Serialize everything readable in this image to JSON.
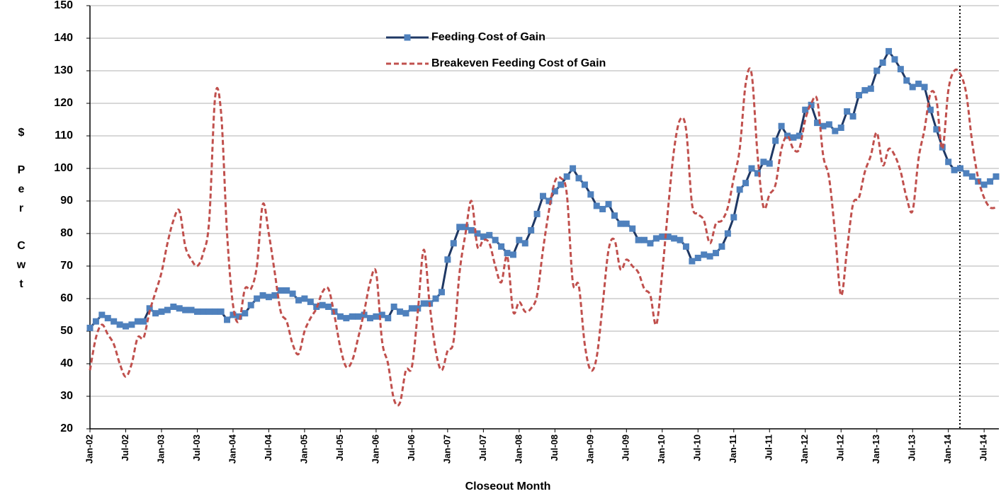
{
  "chart_data": {
    "type": "line",
    "x_label": "Closeout Month",
    "y_label": [
      "$",
      "Per",
      "Cwt"
    ],
    "categories": [
      "Jan-02",
      null,
      null,
      null,
      null,
      null,
      "Jul-02",
      null,
      null,
      null,
      null,
      null,
      "Jan-03",
      null,
      null,
      null,
      null,
      null,
      "Jul-03",
      null,
      null,
      null,
      null,
      null,
      "Jan-04",
      null,
      null,
      null,
      null,
      null,
      "Jul-04",
      null,
      null,
      null,
      null,
      null,
      "Jan-05",
      null,
      null,
      null,
      null,
      null,
      "Jul-05",
      null,
      null,
      null,
      null,
      null,
      "Jan-06",
      null,
      null,
      null,
      null,
      null,
      "Jul-06",
      null,
      null,
      null,
      null,
      null,
      "Jan-07",
      null,
      null,
      null,
      null,
      null,
      "Jul-07",
      null,
      null,
      null,
      null,
      null,
      "Jan-08",
      null,
      null,
      null,
      null,
      null,
      "Jul-08",
      null,
      null,
      null,
      null,
      null,
      "Jan-09",
      null,
      null,
      null,
      null,
      null,
      "Jul-09",
      null,
      null,
      null,
      null,
      null,
      "Jan-10",
      null,
      null,
      null,
      null,
      null,
      "Jul-10",
      null,
      null,
      null,
      null,
      null,
      "Jan-11",
      null,
      null,
      null,
      null,
      null,
      "Jul-11",
      null,
      null,
      null,
      null,
      null,
      "Jan-12",
      null,
      null,
      null,
      null,
      null,
      "Jul-12",
      null,
      null,
      null,
      null,
      null,
      "Jan-13",
      null,
      null,
      null,
      null,
      null,
      "Jul-13",
      null,
      null,
      null,
      null,
      null,
      "Jan-14",
      null,
      null,
      null,
      null,
      null,
      "Jul-14",
      null,
      null
    ],
    "series": [
      {
        "name": "Feeding Cost of Gain",
        "color": "#1f3864",
        "marker_color": "#4f81bd",
        "style": "solid",
        "marker": "square",
        "values": [
          51,
          53,
          55,
          54,
          53,
          52,
          51.5,
          52,
          53,
          53,
          57,
          55.5,
          56,
          56.5,
          57.5,
          57,
          56.5,
          56.5,
          56,
          56,
          56,
          56,
          56,
          53.5,
          55,
          54.5,
          55.5,
          58,
          60,
          61,
          60.5,
          61,
          62.5,
          62.5,
          61.5,
          59.5,
          60,
          59,
          57.5,
          58,
          57.5,
          56,
          54.5,
          54,
          54.5,
          54.5,
          55,
          54,
          54.5,
          55,
          54,
          57.5,
          56,
          55.5,
          57,
          57,
          58.5,
          58.5,
          60,
          62,
          72,
          77,
          82,
          82,
          81,
          80,
          79,
          79.5,
          78,
          76,
          74,
          73.5,
          78,
          77,
          81,
          86,
          91.5,
          90,
          93,
          95,
          97.5,
          100,
          97,
          95,
          92,
          88.5,
          87.5,
          89,
          85.5,
          83,
          83,
          81.5,
          78,
          78,
          77,
          78.5,
          79,
          79,
          78.5,
          78,
          76,
          71.5,
          72.5,
          73.5,
          73,
          74,
          76,
          80,
          85,
          93.5,
          95.5,
          100,
          98.5,
          102,
          101.5,
          108.5,
          113,
          110,
          109.5,
          110,
          118,
          119.5,
          114,
          113,
          113.5,
          111.5,
          112.5,
          117.5,
          116,
          122.5,
          124,
          124.5,
          130,
          132.5,
          136,
          133.5,
          130.5,
          127,
          125,
          126,
          125,
          118,
          112,
          106.5,
          102,
          99.5,
          100,
          98.5,
          97.5,
          96,
          95,
          96,
          97.5
        ]
      },
      {
        "name": "Breakeven Feeding Cost of Gain",
        "color": "#c0504d",
        "style": "dashed",
        "marker": "none",
        "values": [
          38,
          48,
          52,
          49,
          46,
          40,
          36,
          40,
          48,
          48,
          56,
          62,
          68,
          77,
          84,
          87,
          76,
          72,
          70,
          74,
          84,
          122,
          117,
          80,
          58,
          53,
          63,
          63,
          70,
          89,
          80,
          68,
          56,
          53,
          46,
          43,
          50,
          54,
          57,
          62,
          63,
          55,
          45,
          39,
          41,
          48,
          56,
          65,
          68,
          47,
          40,
          29,
          28,
          38,
          39,
          56,
          75,
          58,
          44,
          38,
          44,
          47,
          68,
          80,
          90,
          76,
          78,
          77,
          70,
          65,
          73,
          56,
          59,
          56,
          57,
          61,
          75,
          87,
          96,
          97,
          92,
          65,
          64,
          46,
          38,
          42,
          58,
          75,
          78,
          69,
          72,
          70,
          68,
          63,
          61,
          52,
          68,
          88,
          106,
          115,
          112,
          89,
          86,
          84,
          77,
          83,
          84,
          88,
          97,
          106,
          126,
          129,
          104,
          88,
          92,
          95,
          106,
          110,
          106,
          106,
          115,
          120,
          121,
          104,
          97,
          80,
          61,
          75,
          89,
          91,
          99,
          104,
          111,
          101,
          106,
          104,
          99,
          91,
          87,
          103,
          112,
          123,
          121,
          106,
          124,
          130,
          129,
          123,
          108,
          97,
          91,
          88,
          88
        ]
      }
    ],
    "ylim": [
      20,
      150
    ],
    "yticks": [
      20,
      30,
      40,
      50,
      60,
      70,
      80,
      90,
      100,
      110,
      120,
      130,
      140,
      150
    ],
    "grid": true,
    "legend": "top-center"
  }
}
